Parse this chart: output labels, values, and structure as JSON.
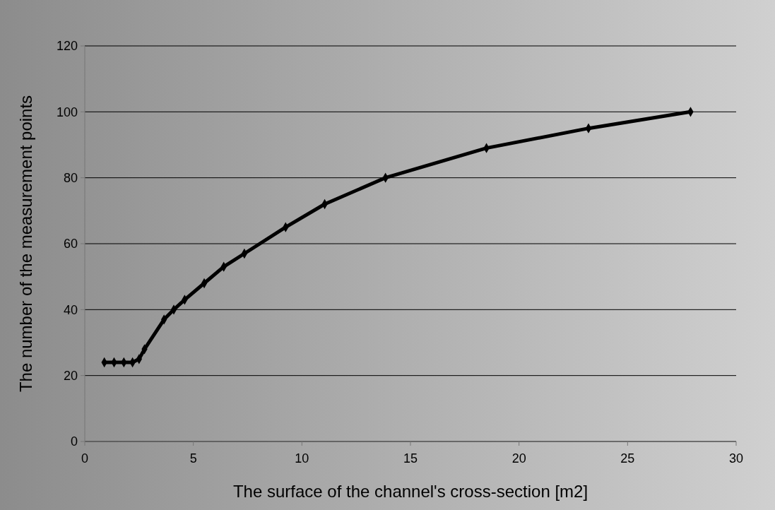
{
  "chart_data": {
    "type": "line",
    "xlabel": "The surface of the channel's cross-section [m2]",
    "ylabel": "The number of the measurement points",
    "x": [
      0.9,
      1.35,
      1.8,
      2.2,
      2.5,
      2.75,
      3.65,
      4.1,
      4.6,
      5.5,
      6.4,
      7.35,
      9.25,
      11.05,
      13.85,
      18.5,
      23.2,
      27.9
    ],
    "series": [
      {
        "color": "#000000",
        "values": [
          24,
          24,
          24,
          24,
          25,
          28,
          37,
          40,
          43,
          48,
          53,
          57,
          65,
          72,
          80,
          89,
          95,
          100
        ]
      }
    ],
    "xlim": [
      0,
      30
    ],
    "xticks": [
      0,
      5,
      10,
      15,
      20,
      25,
      30
    ],
    "ylim": [
      0,
      120
    ],
    "yticks": [
      0,
      20,
      40,
      60,
      80,
      100,
      120
    ],
    "grid": "y",
    "marker": "diamond",
    "line_style": "solid"
  }
}
